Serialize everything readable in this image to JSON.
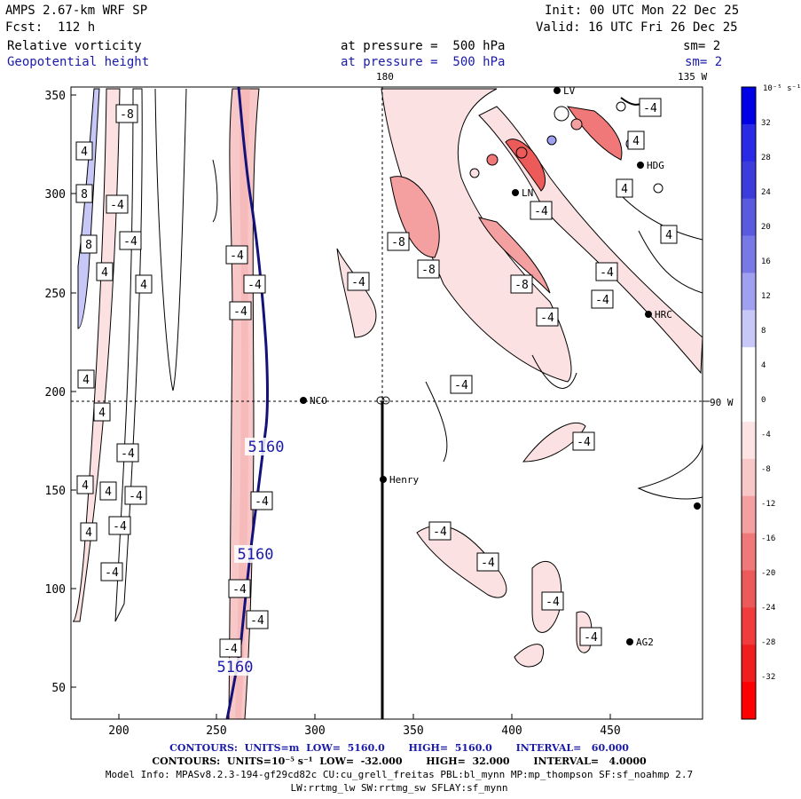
{
  "header": {
    "model": "AMPS 2.67-km WRF SP",
    "forecast": "Fcst:  112 h",
    "init": "Init: 00 UTC Mon 22 Dec 25",
    "valid": "Valid: 16 UTC Fri 26 Dec 25",
    "field1_name": "Relative vorticity",
    "field1_level": "at pressure =  500 hPa",
    "field1_sm": "sm= 2",
    "field2_name": "Geopotential height",
    "field2_level": "at pressure =  500 hPa",
    "field2_sm": "sm= 2"
  },
  "map": {
    "meridian_top_label": "180",
    "meridian_right_top_label": "135 W",
    "parallel_right_label": "90 W",
    "x_ticks": [
      "200",
      "250",
      "300",
      "350",
      "400",
      "450"
    ],
    "y_ticks": [
      "350",
      "300",
      "250",
      "200",
      "150",
      "100",
      "50"
    ],
    "stations": [
      {
        "name": "NCO"
      },
      {
        "name": "Henry"
      },
      {
        "name": "HRC"
      },
      {
        "name": "AG2"
      },
      {
        "name": "LV"
      },
      {
        "name": "HDG"
      },
      {
        "name": "LN"
      }
    ],
    "vorticity_contour_labels": [
      "-8",
      "-4",
      "4",
      "8"
    ],
    "height_contour_label": "5160"
  },
  "colorbar": {
    "units": "10⁻⁵ s⁻¹",
    "levels": [
      "32",
      "28",
      "24",
      "20",
      "16",
      "12",
      "8",
      "4",
      "0",
      "-4",
      "-8",
      "-12",
      "-16",
      "-20",
      "-24",
      "-28",
      "-32"
    ],
    "colors": [
      "#0000e6",
      "#2a2ae6",
      "#3c3cdc",
      "#5a5ae0",
      "#7878e6",
      "#a0a0f0",
      "#c8c8f8",
      "#ffffff",
      "#ffffff",
      "#fce4e4",
      "#f8c8c8",
      "#f4a0a0",
      "#f07878",
      "#ec5a5a",
      "#f03c3c",
      "#f01e1e",
      "#ff0000"
    ]
  },
  "footer": {
    "line1": "CONTOURS:  UNITS=m  LOW=  5160.0       HIGH=  5160.0       INTERVAL=   60.000",
    "line2": "CONTOURS:  UNITS=10⁻⁵ s⁻¹  LOW=  -32.000       HIGH=  32.000       INTERVAL=   4.0000",
    "line3": "Model Info: MPASv8.2.3-194-gf29cd82c CU:cu_grell_freitas PBL:bl_mynn MP:mp_thompson SF:sf_noahmp 2.7",
    "line4": "LW:rrtmg_lw SW:rrtmg_sw SFLAY:sf_mynn"
  }
}
